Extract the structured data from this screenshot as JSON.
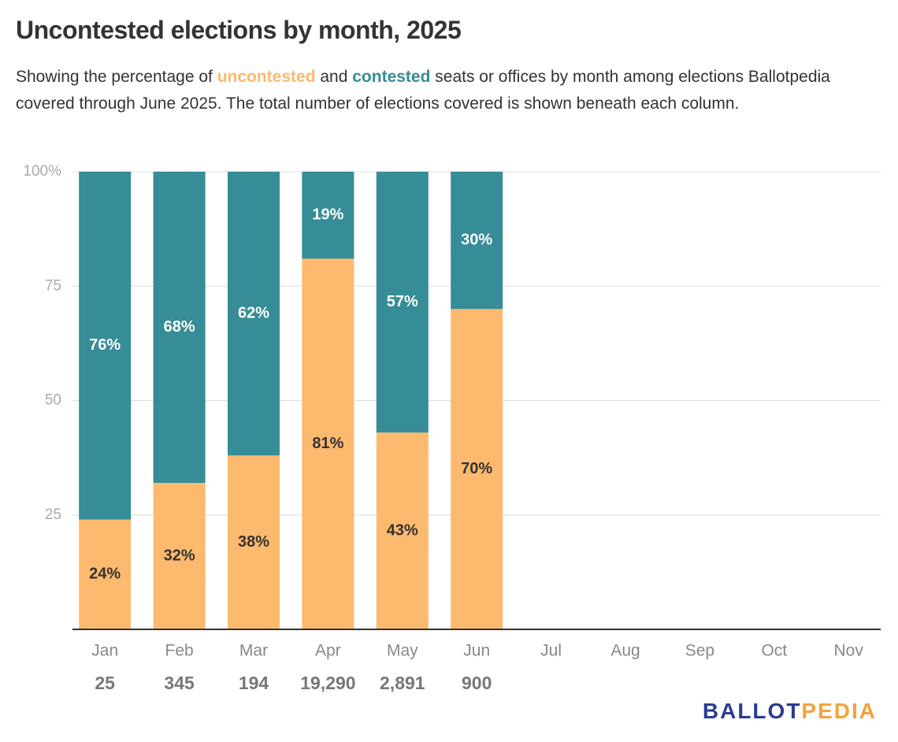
{
  "chart_data": {
    "type": "stacked_bar",
    "title": "Uncontested elections by month, 2025",
    "subtitle_parts": [
      "Showing the percentage of ",
      "uncontested",
      " and ",
      "contested",
      " seats or offices by month among elections Ballotpedia covered through June 2025. The total number of elections covered is shown beneath each column."
    ],
    "categories": [
      "Jan",
      "Feb",
      "Mar",
      "Apr",
      "May",
      "Jun",
      "Jul",
      "Aug",
      "Sep",
      "Oct",
      "Nov"
    ],
    "series": [
      {
        "name": "uncontested",
        "color": "#fdb96e",
        "values": [
          24,
          32,
          38,
          81,
          43,
          70,
          null,
          null,
          null,
          null,
          null
        ],
        "value_labels": [
          "24%",
          "32%",
          "38%",
          "81%",
          "43%",
          "70%",
          null,
          null,
          null,
          null,
          null
        ]
      },
      {
        "name": "contested",
        "color": "#368c97",
        "values": [
          76,
          68,
          62,
          19,
          57,
          30,
          null,
          null,
          null,
          null,
          null
        ],
        "value_labels": [
          "76%",
          "68%",
          "62%",
          "19%",
          "57%",
          "30%",
          null,
          null,
          null,
          null,
          null
        ]
      }
    ],
    "totals": {
      "values": [
        25,
        345,
        194,
        19290,
        2891,
        900
      ],
      "labels": [
        "25",
        "345",
        "194",
        "19,290",
        "2,891",
        "900"
      ]
    },
    "ylim": [
      0,
      100
    ],
    "yticks": [
      25,
      50,
      75,
      {
        "value": 100,
        "label": "100%"
      }
    ],
    "grid": true,
    "logo": [
      "BALLOT",
      "PEDIA"
    ]
  }
}
